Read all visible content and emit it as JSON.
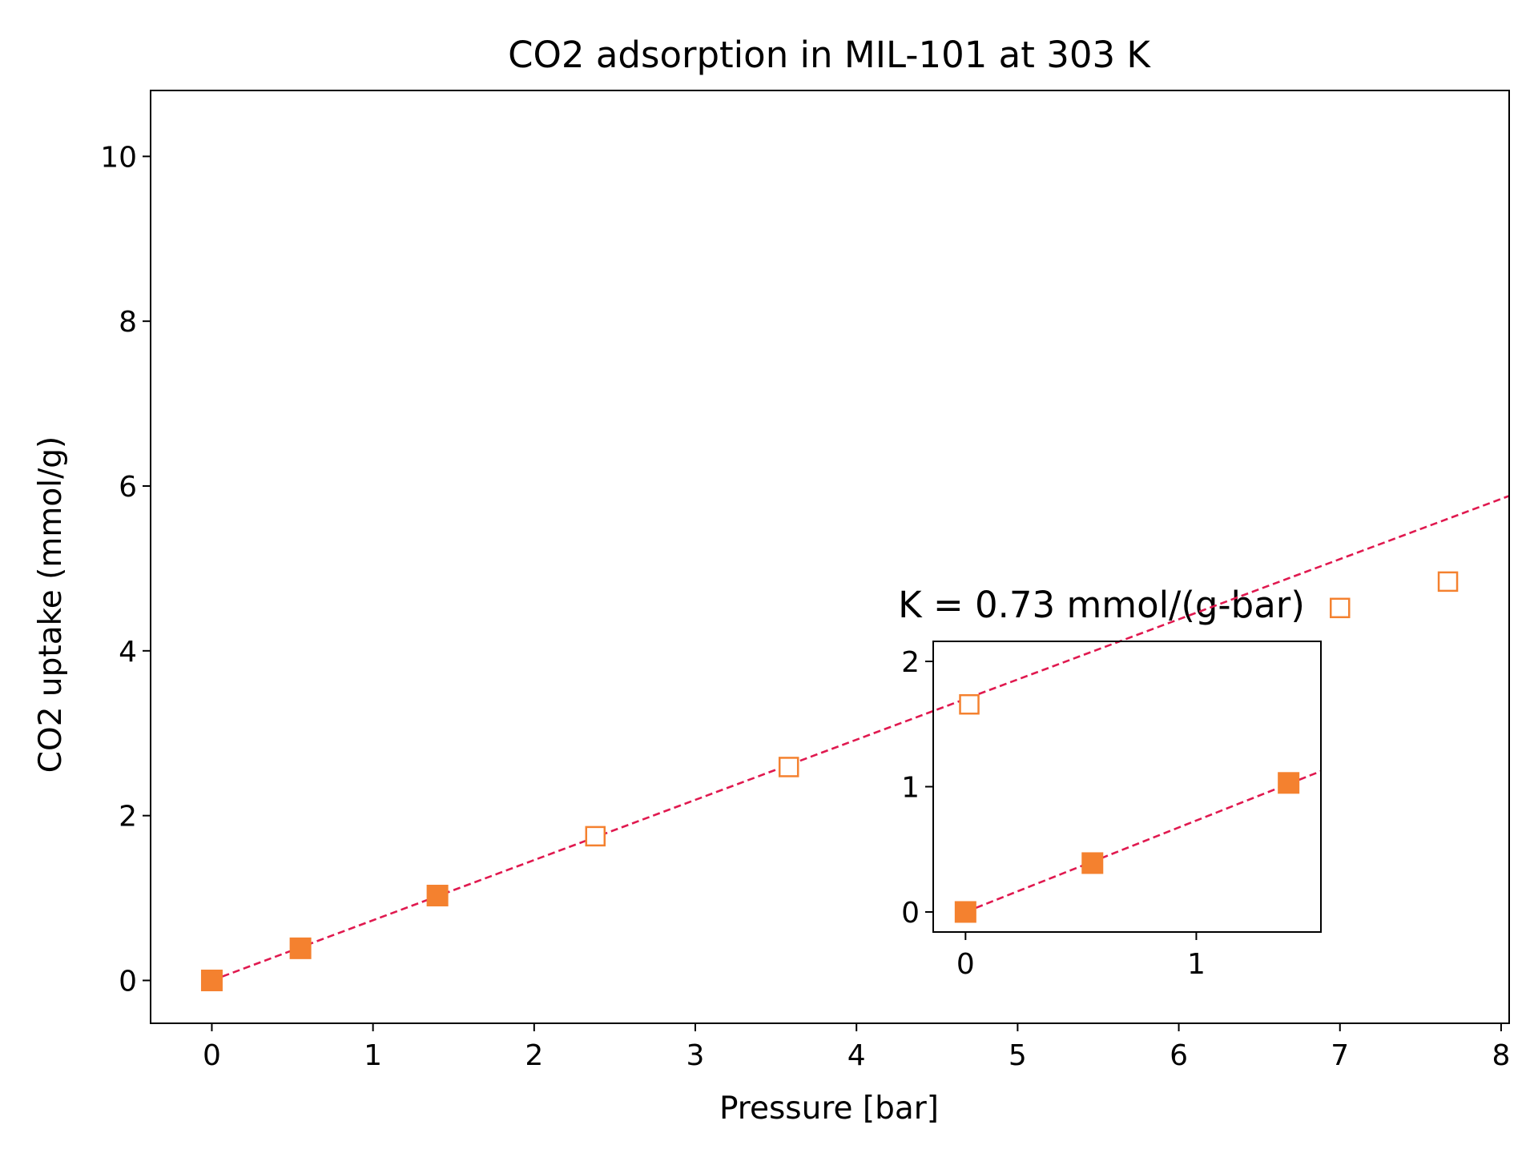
{
  "chart_data": {
    "type": "scatter",
    "title": "CO2 adsorption in MIL-101 at 303 K",
    "xlabel": "Pressure [bar]",
    "ylabel": "CO2 uptake (mmol/g)",
    "xlim": [
      -0.38,
      8.05
    ],
    "ylim": [
      -0.52,
      10.8
    ],
    "x_ticks": [
      0,
      1,
      2,
      3,
      4,
      5,
      6,
      7,
      8
    ],
    "y_ticks": [
      0,
      2,
      4,
      6,
      8,
      10
    ],
    "grid": false,
    "series": [
      {
        "marker": "filled-square",
        "x": [
          0.0,
          0.55,
          1.4
        ],
        "y": [
          0.0,
          0.39,
          1.03
        ]
      },
      {
        "marker": "open-square",
        "x": [
          2.38,
          3.58,
          4.7,
          7.0,
          7.67
        ],
        "y": [
          1.75,
          2.59,
          3.35,
          4.52,
          4.84
        ]
      },
      {
        "style": "dashed-line",
        "x": [
          0.0,
          8.05
        ],
        "y": [
          0.0,
          5.88
        ]
      }
    ],
    "inset": {
      "title": "K = 0.73 mmol/(g-bar)",
      "xlim": [
        -0.14,
        1.54
      ],
      "ylim": [
        -0.16,
        2.16
      ],
      "x_ticks": [
        0,
        1
      ],
      "y_ticks": [
        0,
        1,
        2
      ],
      "series": [
        {
          "marker": "filled-square",
          "x": [
            0.0,
            0.55,
            1.4
          ],
          "y": [
            0.0,
            0.39,
            1.03
          ]
        },
        {
          "style": "dashed-line",
          "x": [
            0.0,
            1.54
          ],
          "y": [
            0.0,
            1.124
          ]
        }
      ]
    },
    "colors": {
      "marker": "#f4812f",
      "fit_line": "#e0194f",
      "axes": "#000000"
    }
  }
}
